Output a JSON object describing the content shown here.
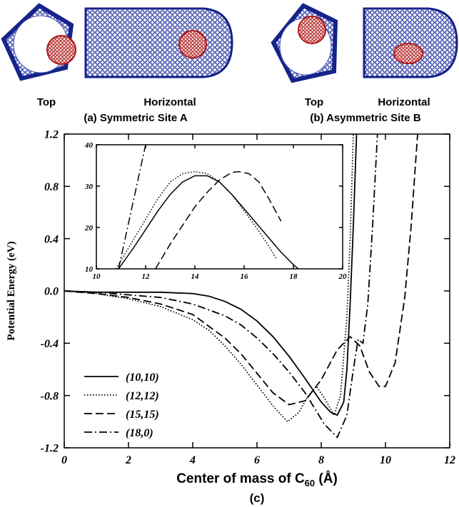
{
  "panels": [
    {
      "labels": [
        "Top",
        "Horizontal"
      ],
      "caption": "(a) Symmetric Site A"
    },
    {
      "labels": [
        "Top",
        "Horizontal"
      ],
      "caption": "(b) Asymmetric Site B"
    }
  ],
  "chart_data": [
    {
      "type": "line",
      "caption": "(c)",
      "xlabel": {
        "text": "Center of mass of C",
        "subscript": "60",
        "suffix": " (Å)"
      },
      "ylabel": "Potential Energy (eV)",
      "xlim": [
        0,
        12
      ],
      "ylim": [
        -1.2,
        1.2
      ],
      "xticks": [
        0,
        2,
        4,
        6,
        8,
        10,
        12
      ],
      "yticks": [
        -1.2,
        -0.8,
        -0.4,
        {
          "value": 0,
          "label": "0.0"
        },
        0.4,
        0.8,
        1.2
      ],
      "legend": "left",
      "series": [
        {
          "name": "(10,10)",
          "color": "#000000",
          "style": "solid",
          "x": [
            0,
            1,
            2,
            3,
            4,
            4.5,
            5,
            5.5,
            6,
            6.5,
            7,
            7.5,
            8,
            8.3,
            8.5,
            8.7,
            8.8,
            8.9,
            9.0,
            9.1
          ],
          "values": [
            0,
            -0.01,
            -0.01,
            -0.01,
            -0.02,
            -0.04,
            -0.08,
            -0.14,
            -0.23,
            -0.35,
            -0.5,
            -0.67,
            -0.85,
            -0.93,
            -0.95,
            -0.85,
            -0.6,
            -0.1,
            0.5,
            1.2
          ]
        },
        {
          "name": "(12,12)",
          "color": "#000000",
          "style": "dotted",
          "x": [
            0,
            1,
            2,
            3,
            4,
            4.5,
            5,
            5.5,
            6,
            6.5,
            6.95,
            7.3,
            7.6,
            7.85,
            8.1,
            8.4,
            8.6,
            8.8,
            8.9,
            9.0
          ],
          "values": [
            0,
            -0.02,
            -0.06,
            -0.12,
            -0.22,
            -0.3,
            -0.42,
            -0.56,
            -0.72,
            -0.88,
            -1.0,
            -0.93,
            -0.8,
            -0.73,
            -0.82,
            -0.95,
            -0.8,
            -0.2,
            0.4,
            1.2
          ]
        },
        {
          "name": "(15,15)",
          "color": "#000000",
          "style": "dashed",
          "x": [
            0,
            1,
            2,
            3,
            4,
            5,
            5.5,
            6,
            6.5,
            7,
            7.5,
            8,
            8.5,
            8.9,
            9.2,
            9.5,
            9.8,
            10.0,
            10.3,
            10.6,
            10.8,
            11.0
          ],
          "values": [
            0,
            -0.02,
            -0.05,
            -0.1,
            -0.18,
            -0.36,
            -0.48,
            -0.63,
            -0.78,
            -0.87,
            -0.84,
            -0.68,
            -0.45,
            -0.35,
            -0.42,
            -0.62,
            -0.73,
            -0.73,
            -0.55,
            -0.05,
            0.5,
            1.2
          ]
        },
        {
          "name": "(18,0)",
          "color": "#000000",
          "style": "dashdot",
          "x": [
            0,
            1,
            2,
            3,
            4,
            5,
            5.5,
            6,
            6.5,
            7,
            7.5,
            7.8,
            8.1,
            8.5,
            8.8,
            9.0,
            9.15,
            9.3,
            9.45,
            9.6,
            9.75
          ],
          "values": [
            0,
            -0.01,
            -0.03,
            -0.05,
            -0.1,
            -0.19,
            -0.26,
            -0.36,
            -0.48,
            -0.62,
            -0.78,
            -0.9,
            -1.02,
            -1.12,
            -0.95,
            -0.6,
            -0.37,
            -0.4,
            -0.1,
            0.5,
            1.2
          ]
        }
      ]
    },
    {
      "type": "line",
      "xlim": [
        10,
        20
      ],
      "ylim": [
        10,
        40
      ],
      "xticks": [
        10,
        12,
        14,
        16,
        18,
        20
      ],
      "yticks": [
        10,
        20,
        30,
        40
      ],
      "series": [
        {
          "color": "#000000",
          "style": "solid",
          "x": [
            10.9,
            11.5,
            12,
            12.5,
            13,
            13.5,
            14,
            14.5,
            15,
            15.5,
            16,
            16.5,
            17,
            17.5,
            18,
            18.2
          ],
          "values": [
            10,
            15,
            19.5,
            24,
            28,
            31,
            32.5,
            32.5,
            31,
            28,
            24.5,
            21,
            17.5,
            14,
            11,
            10
          ]
        },
        {
          "color": "#000000",
          "style": "dotted",
          "x": [
            10.8,
            11.5,
            12,
            12.5,
            13,
            13.5,
            14,
            14.5,
            15,
            15.5,
            16,
            16.5,
            17,
            17.3
          ],
          "values": [
            10,
            17,
            22,
            27,
            31,
            33,
            33.5,
            33,
            31,
            28,
            24,
            20,
            15.5,
            12.5
          ]
        },
        {
          "color": "#000000",
          "style": "dashed",
          "x": [
            12.4,
            13,
            13.5,
            14,
            14.5,
            15,
            15.5,
            15.8,
            16.2,
            16.6,
            17,
            17.5
          ],
          "values": [
            10,
            16,
            20.5,
            25,
            28.5,
            31.5,
            33.3,
            33.5,
            33,
            31,
            27,
            21.5
          ]
        },
        {
          "color": "#000000",
          "style": "dashdot",
          "x": [
            10.9,
            12.0
          ],
          "values": [
            10,
            40
          ]
        }
      ]
    }
  ]
}
